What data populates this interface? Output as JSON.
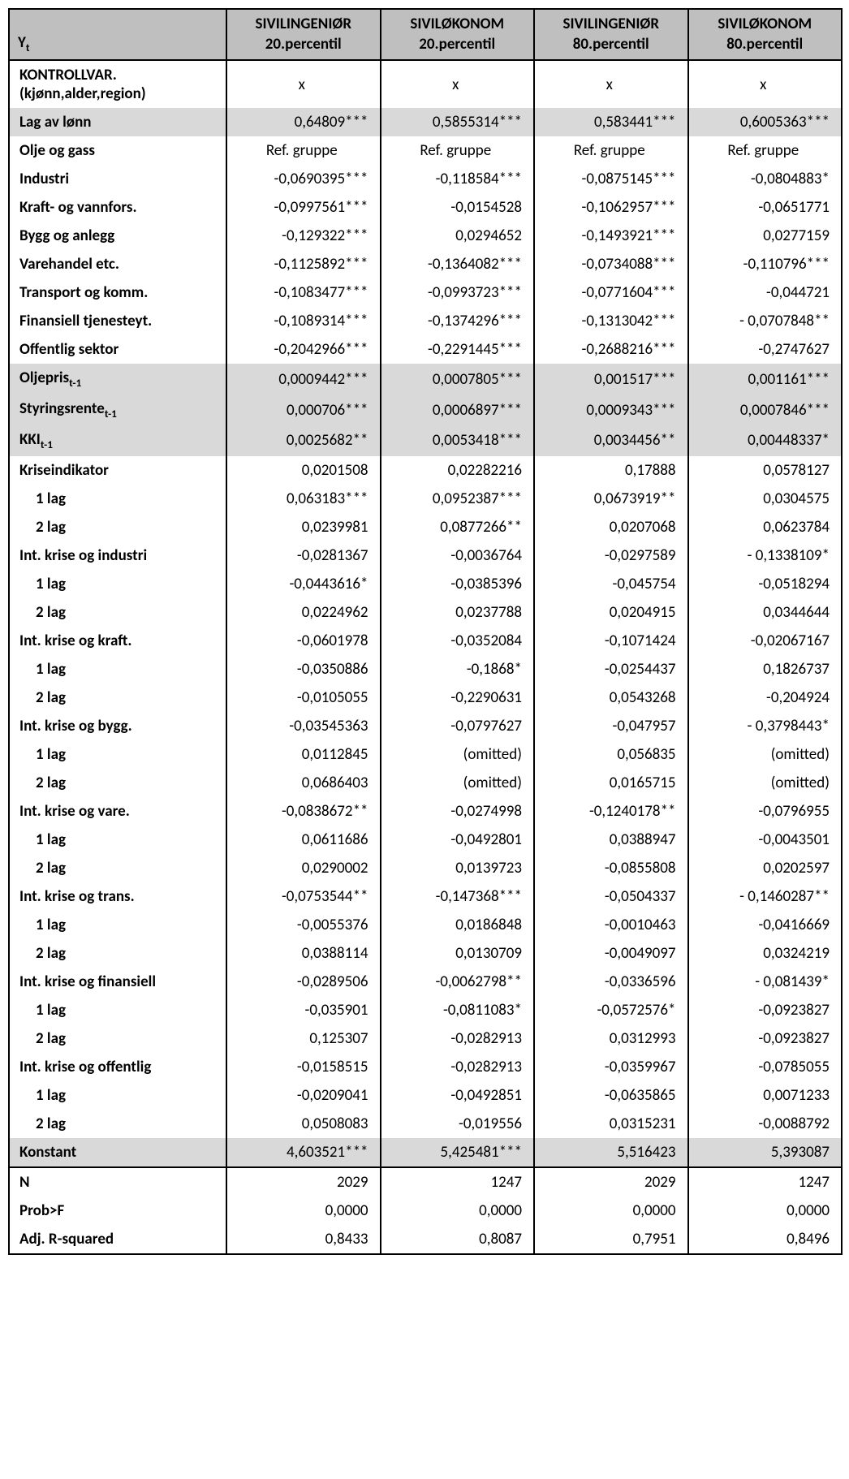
{
  "headers": {
    "yt_html": "Y<sub>t</sub>",
    "c1_l1": "SIVILINGENIØR",
    "c1_l2": "20.percentil",
    "c2_l1": "SIVILØKONOM",
    "c2_l2": "20.percentil",
    "c3_l1": "SIVILINGENIØR",
    "c3_l2": "80.percentil",
    "c4_l1": "SIVILØKONOM",
    "c4_l2": "80.percentil"
  },
  "rows": [
    {
      "label": "KONTROLLVAR. (kjønn,alder,region)",
      "vals": [
        "x",
        "x",
        "x",
        "x"
      ],
      "bold": true,
      "sectionTop": true,
      "center": true,
      "label_html": "KONTROLLVAR.<br>(kjønn,alder,region)"
    },
    {
      "label": "Lag av lønn",
      "vals": [
        "0,64809***",
        "0,5855314***",
        "0,583441***",
        "0,6005363***"
      ],
      "shaded": true
    },
    {
      "label": "Olje og gass",
      "vals": [
        "Ref. gruppe",
        "Ref. gruppe",
        "Ref. gruppe",
        "Ref. gruppe"
      ],
      "bold": true,
      "center": true
    },
    {
      "label": "Industri",
      "vals": [
        "-0,0690395***",
        "-0,118584***",
        "-0,0875145***",
        "-0,0804883*"
      ],
      "bold": true
    },
    {
      "label": "Kraft- og vannfors.",
      "vals": [
        "-0,0997561***",
        "-0,0154528",
        "-0,1062957***",
        "-0,0651771"
      ],
      "bold": true
    },
    {
      "label": "Bygg og anlegg",
      "vals": [
        "-0,129322***",
        "0,0294652",
        "-0,1493921***",
        "0,0277159"
      ],
      "bold": true
    },
    {
      "label": "Varehandel etc.",
      "vals": [
        "-0,1125892***",
        "-0,1364082***",
        "-0,0734088***",
        "-0,110796***"
      ],
      "bold": true
    },
    {
      "label": "Transport og komm.",
      "vals": [
        "-0,1083477***",
        "-0,0993723***",
        "-0,0771604***",
        "-0,044721"
      ],
      "bold": true
    },
    {
      "label": "Finansiell tjenesteyt.",
      "vals": [
        "-0,1089314***",
        "-0,1374296***",
        "-0,1313042***",
        "- 0,0707848**"
      ],
      "bold": true
    },
    {
      "label": "Offentlig sektor",
      "vals": [
        "-0,2042966***",
        "-0,2291445***",
        "-0,2688216***",
        "-0,2747627"
      ],
      "bold": true
    },
    {
      "label": "Oljepris t-1",
      "label_html": "Oljepris<sub>t-1</sub>",
      "vals": [
        "0,0009442***",
        "0,0007805***",
        "0,001517***",
        "0,001161***"
      ],
      "shaded": true
    },
    {
      "label": "Styringsrente t-1",
      "label_html": "Styringsrente<sub>t-1</sub>",
      "vals": [
        "0,000706***",
        "0,0006897***",
        "0,0009343***",
        "0,0007846***"
      ],
      "shaded": true
    },
    {
      "label": "KKI t-1",
      "label_html": "KKI<sub>t-1</sub>",
      "vals": [
        "0,0025682**",
        "0,0053418***",
        "0,0034456**",
        "0,00448337*"
      ],
      "shaded": true
    },
    {
      "label": "Kriseindikator",
      "vals": [
        "0,0201508",
        "0,02282216",
        "0,17888",
        "0,0578127"
      ],
      "bold": true
    },
    {
      "label": "1 lag",
      "vals": [
        "0,063183***",
        "0,0952387***",
        "0,0673919**",
        "0,0304575"
      ],
      "bold": true,
      "indent": 1
    },
    {
      "label": "2 lag",
      "vals": [
        "0,0239981",
        "0,0877266**",
        "0,0207068",
        "0,0623784"
      ],
      "bold": true,
      "indent": 1
    },
    {
      "label": "Int. krise og industri",
      "vals": [
        "-0,0281367",
        "-0,0036764",
        "-0,0297589",
        "- 0,1338109*"
      ],
      "bold": true
    },
    {
      "label": "1 lag",
      "vals": [
        "-0,0443616*",
        "-0,0385396",
        "-0,045754",
        "-0,0518294"
      ],
      "bold": true,
      "indent": 1
    },
    {
      "label": "2 lag",
      "vals": [
        "0,0224962",
        "0,0237788",
        "0,0204915",
        "0,0344644"
      ],
      "bold": true,
      "indent": 1
    },
    {
      "label": "Int. krise og kraft.",
      "vals": [
        "-0,0601978",
        "-0,0352084",
        "-0,1071424",
        "-0,02067167"
      ],
      "bold": true
    },
    {
      "label": "1 lag",
      "vals": [
        "-0,0350886",
        "-0,1868*",
        "-0,0254437",
        "0,1826737"
      ],
      "bold": true,
      "indent": 1
    },
    {
      "label": "2 lag",
      "vals": [
        "-0,0105055",
        "-0,2290631",
        "0,0543268",
        "-0,204924"
      ],
      "bold": true,
      "indent": 1
    },
    {
      "label": "Int. krise og bygg.",
      "vals": [
        "-0,03545363",
        "-0,0797627",
        "-0,047957",
        "- 0,3798443*"
      ],
      "bold": true
    },
    {
      "label": "1 lag",
      "vals": [
        "0,0112845",
        "(omitted)",
        "0,056835",
        "(omitted)"
      ],
      "bold": true,
      "indent": 1
    },
    {
      "label": "2 lag",
      "vals": [
        "0,0686403",
        "(omitted)",
        "0,0165715",
        "(omitted)"
      ],
      "bold": true,
      "indent": 1
    },
    {
      "label": "Int. krise og vare.",
      "vals": [
        "-0,0838672**",
        "-0,0274998",
        "-0,1240178**",
        "-0,0796955"
      ],
      "bold": true
    },
    {
      "label": "1 lag",
      "vals": [
        "0,0611686",
        "-0,0492801",
        "0,0388947",
        "-0,0043501"
      ],
      "bold": true,
      "indent": 1
    },
    {
      "label": "2 lag",
      "vals": [
        "0,0290002",
        "0,0139723",
        "-0,0855808",
        "0,0202597"
      ],
      "bold": true,
      "indent": 1
    },
    {
      "label": "Int. krise og trans.",
      "vals": [
        "-0,0753544**",
        "-0,147368***",
        "-0,0504337",
        "- 0,1460287**"
      ],
      "bold": true
    },
    {
      "label": "1 lag",
      "vals": [
        "-0,0055376",
        "0,0186848",
        "-0,0010463",
        "-0,0416669"
      ],
      "bold": true,
      "indent": 1
    },
    {
      "label": "2 lag",
      "vals": [
        "0,0388114",
        "0,0130709",
        "-0,0049097",
        "0,0324219"
      ],
      "bold": true,
      "indent": 1
    },
    {
      "label": "Int. krise og finansiell",
      "vals": [
        "-0,0289506",
        "-0,0062798**",
        "-0,0336596",
        "- 0,081439*"
      ],
      "bold": true
    },
    {
      "label": "1 lag",
      "vals": [
        "-0,035901",
        "-0,0811083*",
        "-0,0572576*",
        "-0,0923827"
      ],
      "bold": true,
      "indent": 1
    },
    {
      "label": "2 lag",
      "vals": [
        "0,125307",
        "-0,0282913",
        "0,0312993",
        "-0,0923827"
      ],
      "bold": true,
      "indent": 1
    },
    {
      "label": "Int. krise og offentlig",
      "vals": [
        "-0,0158515",
        "-0,0282913",
        "-0,0359967",
        "-0,0785055"
      ],
      "bold": true
    },
    {
      "label": "1 lag",
      "vals": [
        "-0,0209041",
        "-0,0492851",
        "-0,0635865",
        "0,0071233"
      ],
      "bold": true,
      "indent": 1
    },
    {
      "label": "2 lag",
      "vals": [
        "0,0508083",
        "-0,019556",
        "0,0315231",
        "-0,0088792"
      ],
      "bold": true,
      "indent": 1
    },
    {
      "label": "Konstant",
      "vals": [
        "4,603521***",
        "5,425481***",
        "5,516423",
        "5,393087"
      ],
      "shaded": true
    },
    {
      "label": "N",
      "vals": [
        "2029",
        "1247",
        "2029",
        "1247"
      ],
      "bold": true,
      "sectionTop": true
    },
    {
      "label": "Prob>F",
      "vals": [
        "0,0000",
        "0,0000",
        "0,0000",
        "0,0000"
      ],
      "bold": true
    },
    {
      "label": "Adj. R-squared",
      "vals": [
        "0,8433",
        "0,8087",
        "0,7951",
        "0,8496"
      ],
      "bold": true,
      "last": true
    }
  ]
}
